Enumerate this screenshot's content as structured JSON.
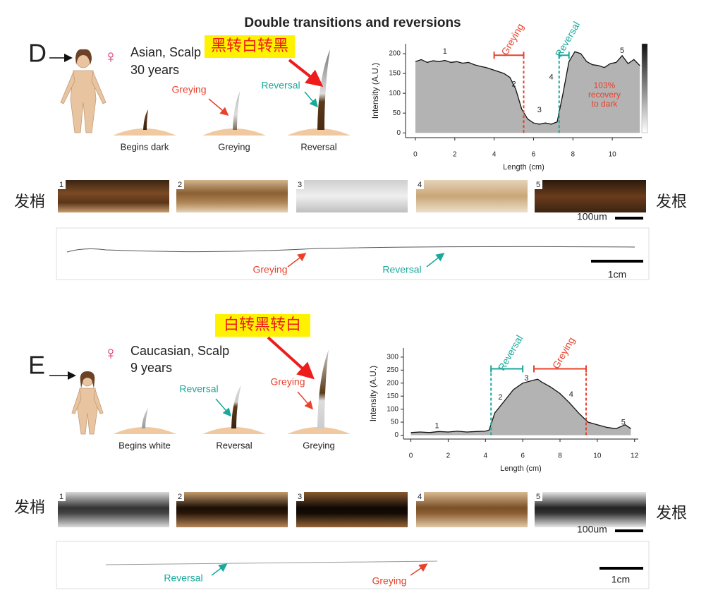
{
  "title": "Double transitions and reversions",
  "panels": [
    {
      "label": "D",
      "sex": "♀",
      "subject": "Asian, Scalp",
      "age": "30 years",
      "note": "黑转白转黑",
      "stages": [
        "Begins dark",
        "Greying",
        "Reversal"
      ],
      "arrows": [
        "Greying",
        "Reversal"
      ],
      "tip": "发梢",
      "root": "发根",
      "segments": [
        "1",
        "2",
        "3",
        "4",
        "5"
      ],
      "scale_micro": "100um",
      "scale_macro": "1cm",
      "strand_labels": [
        "Greying",
        "Reversal"
      ]
    },
    {
      "label": "E",
      "sex": "♀",
      "subject": "Caucasian, Scalp",
      "age": "9 years",
      "note": "白转黑转白",
      "stages": [
        "Begins white",
        "Reversal",
        "Greying"
      ],
      "arrows": [
        "Reversal",
        "Greying"
      ],
      "tip": "发梢",
      "root": "发根",
      "segments": [
        "1",
        "2",
        "3",
        "4",
        "5"
      ],
      "scale_micro": "100um",
      "scale_macro": "1cm",
      "strand_labels": [
        "Reversal",
        "Greying"
      ]
    }
  ],
  "chart_data": [
    {
      "type": "area",
      "xlabel": "Length (cm)",
      "ylabel": "Intensity (A.U.)",
      "color": "#b3b3b3",
      "x": [
        0,
        0.3,
        0.6,
        0.9,
        1.2,
        1.5,
        1.8,
        2.1,
        2.4,
        2.7,
        3.0,
        3.3,
        3.6,
        3.9,
        4.2,
        4.5,
        4.8,
        5.1,
        5.4,
        5.7,
        6.0,
        6.3,
        6.6,
        6.9,
        7.2,
        7.5,
        7.8,
        8.1,
        8.4,
        8.7,
        9.0,
        9.3,
        9.6,
        9.9,
        10.2,
        10.5,
        10.8,
        11.1,
        11.4
      ],
      "values": [
        180,
        185,
        178,
        182,
        180,
        183,
        178,
        180,
        176,
        178,
        172,
        168,
        165,
        160,
        155,
        150,
        140,
        110,
        60,
        35,
        25,
        22,
        25,
        22,
        28,
        100,
        180,
        205,
        200,
        180,
        172,
        170,
        165,
        175,
        178,
        195,
        175,
        185,
        170
      ],
      "xlim": [
        -0.5,
        11.5
      ],
      "ylim": [
        -12,
        225
      ],
      "xticks": [
        0,
        2,
        4,
        6,
        8,
        10
      ],
      "yticks": [
        0,
        50,
        100,
        150,
        200
      ],
      "annotations": [
        {
          "label": "1",
          "x": 1.5,
          "y": 205
        },
        {
          "label": "2",
          "x": 5.0,
          "y": 122
        },
        {
          "label": "3",
          "x": 6.3,
          "y": 57
        },
        {
          "label": "4",
          "x": 6.9,
          "y": 140
        },
        {
          "label": "5",
          "x": 10.5,
          "y": 207
        }
      ],
      "markers": [
        {
          "label": "Greying",
          "color": "#e8412c",
          "from": 4.0,
          "to": 5.5,
          "dash": 5.5,
          "y": 196
        },
        {
          "label": "Reversal",
          "color": "#1aa89a",
          "from": 7.3,
          "to": 7.8,
          "dash": 7.3,
          "y": 196
        }
      ],
      "note": {
        "lines": [
          "103%",
          "recovery",
          "to dark"
        ],
        "x": 9.6,
        "y": 95,
        "color": "#e8412c"
      }
    },
    {
      "type": "area",
      "xlabel": "Length (cm)",
      "ylabel": "Intensity (A.U.)",
      "color": "#b3b3b3",
      "x": [
        0,
        0.5,
        1,
        1.5,
        2,
        2.5,
        3,
        3.5,
        4,
        4.2,
        4.5,
        5,
        5.5,
        6,
        6.5,
        6.8,
        7,
        7.5,
        8,
        8.5,
        9,
        9.5,
        10,
        10.5,
        11,
        11.5,
        11.8
      ],
      "values": [
        10,
        12,
        10,
        14,
        12,
        15,
        12,
        14,
        15,
        20,
        85,
        130,
        175,
        200,
        210,
        215,
        205,
        185,
        160,
        125,
        85,
        50,
        40,
        30,
        25,
        40,
        25
      ],
      "xlim": [
        -0.4,
        12.2
      ],
      "ylim": [
        -15,
        335
      ],
      "xticks": [
        0,
        2,
        4,
        6,
        8,
        10,
        12
      ],
      "yticks": [
        0,
        50,
        100,
        150,
        200,
        250,
        300
      ],
      "annotations": [
        {
          "label": "1",
          "x": 1.4,
          "y": 35
        },
        {
          "label": "2",
          "x": 4.8,
          "y": 145
        },
        {
          "label": "3",
          "x": 6.2,
          "y": 218
        },
        {
          "label": "4",
          "x": 8.6,
          "y": 155
        },
        {
          "label": "5",
          "x": 11.4,
          "y": 48
        }
      ],
      "markers": [
        {
          "label": "Reversal",
          "color": "#1aa89a",
          "from": 4.3,
          "to": 6.0,
          "dash": 4.3,
          "y": 255
        },
        {
          "label": "Greying",
          "color": "#e8412c",
          "from": 6.6,
          "to": 9.4,
          "dash": 9.4,
          "y": 255
        }
      ]
    }
  ]
}
